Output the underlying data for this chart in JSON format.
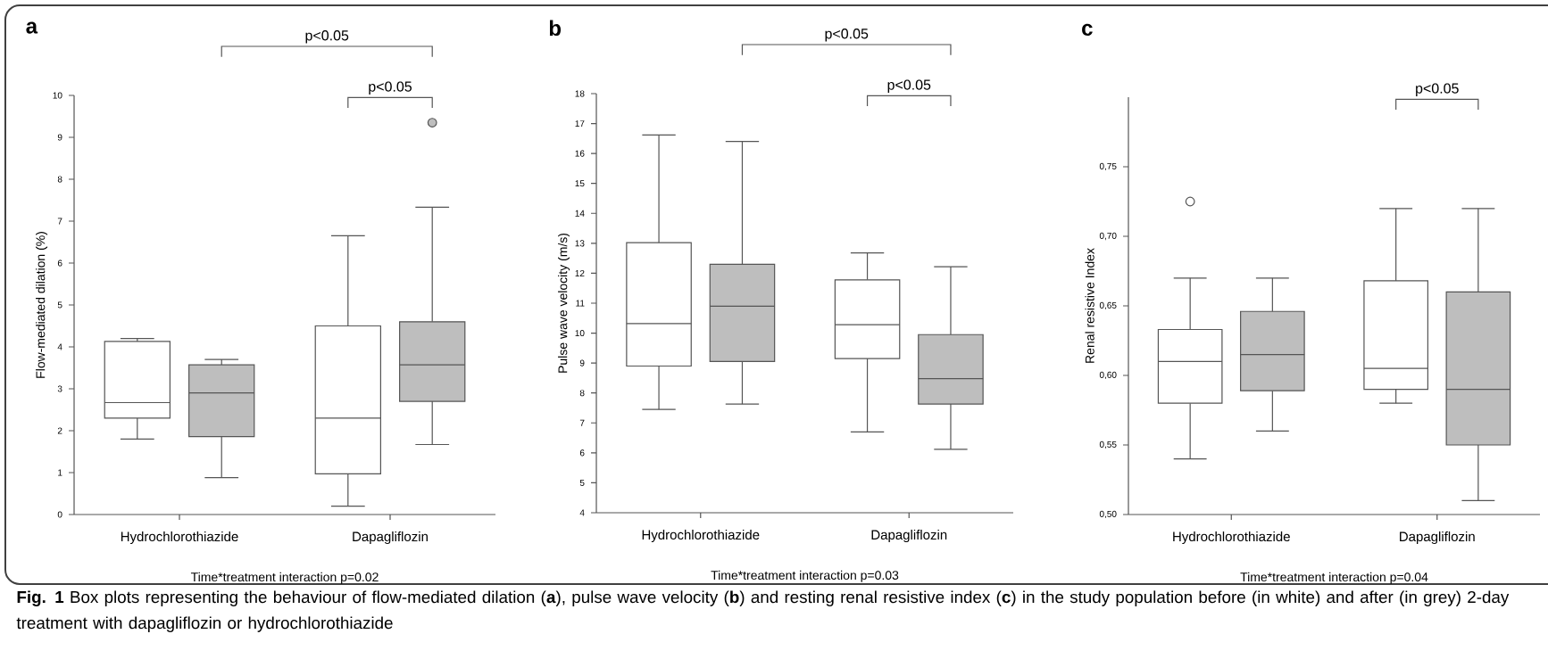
{
  "chart_data": [
    {
      "type": "box",
      "title": "a",
      "ylabel": "Flow-mediated dilation (%)",
      "xlabel": "Time*treatment interaction p=0.02",
      "categories": [
        "Hydrochlorothiazide",
        "Dapagliflozin"
      ],
      "ylim": [
        0,
        10
      ],
      "yticks": [
        0,
        1,
        2,
        3,
        4,
        5,
        6,
        7,
        8,
        9,
        10
      ],
      "series": [
        {
          "color": "#ffffff",
          "boxes": [
            {
              "low": 1.8,
              "q1": 2.3,
              "median": 2.67,
              "q3": 4.13,
              "high": 4.2
            },
            {
              "low": 0.2,
              "q1": 0.97,
              "median": 2.3,
              "q3": 4.5,
              "high": 6.65
            }
          ]
        },
        {
          "color": "#bebebe",
          "boxes": [
            {
              "low": 0.88,
              "q1": 1.86,
              "median": 2.9,
              "q3": 3.57,
              "high": 3.7
            },
            {
              "low": 1.67,
              "q1": 2.7,
              "median": 3.57,
              "q3": 4.6,
              "high": 7.33,
              "outliers": [
                9.35
              ]
            }
          ]
        }
      ],
      "annotations": [
        "p<0.05",
        "p<0.05",
        "**Fig. 1** Box plots representing the behaviour of flow-mediated dilation (**a**), pulse wave velocity (**b**) and resting renal resistive index (**c**) in the study population before (in white) and after (in grey) 2-day treatment with dapagliflozin or hydrochlorothiazide"
      ]
    },
    {
      "type": "box",
      "title": "b",
      "ylabel": "Pulse wave velocity (m/s)",
      "xlabel": "Time*treatment interaction p=0.03",
      "categories": [
        "Hydrochlorothiazide",
        "Dapagliflozin"
      ],
      "ylim": [
        4,
        18
      ],
      "yticks": [
        4,
        5,
        6,
        7,
        8,
        9,
        10,
        11,
        12,
        13,
        14,
        15,
        16,
        17,
        18
      ],
      "series": [
        {
          "color": "#ffffff",
          "boxes": [
            {
              "low": 7.45,
              "q1": 8.9,
              "median": 10.32,
              "q3": 13.02,
              "high": 16.62
            },
            {
              "low": 6.7,
              "q1": 9.15,
              "median": 10.28,
              "q3": 11.78,
              "high": 12.68
            }
          ]
        },
        {
          "color": "#bebebe",
          "boxes": [
            {
              "low": 7.63,
              "q1": 9.05,
              "median": 10.9,
              "q3": 12.3,
              "high": 16.4
            },
            {
              "low": 6.12,
              "q1": 7.63,
              "median": 8.48,
              "q3": 9.95,
              "high": 12.22
            }
          ]
        }
      ],
      "annotations": [
        "p<0.05",
        "p<0.05"
      ]
    },
    {
      "type": "box",
      "title": "c",
      "ylabel": "Renal resistive Index",
      "xlabel": "Time*treatment interaction p=0.04",
      "categories": [
        "Hydrochlorothiazide",
        "Dapagliflozin"
      ],
      "ylim": [
        0.5,
        0.8
      ],
      "yticks": [
        {
          "value": 0.5,
          "label": "0,50"
        },
        {
          "value": 0.55,
          "label": "0,55"
        },
        {
          "value": 0.6,
          "label": "0,60"
        },
        {
          "value": 0.65,
          "label": "0,65"
        },
        {
          "value": 0.7,
          "label": "0,70"
        },
        {
          "value": 0.75,
          "label": "0,75"
        }
      ],
      "series": [
        {
          "color": "#ffffff",
          "boxes": [
            {
              "low": 0.54,
              "q1": 0.58,
              "median": 0.61,
              "q3": 0.633,
              "high": 0.67,
              "outliers": [
                0.725
              ]
            },
            {
              "low": 0.58,
              "q1": 0.59,
              "median": 0.605,
              "q3": 0.668,
              "high": 0.72
            }
          ]
        },
        {
          "color": "#bebebe",
          "boxes": [
            {
              "low": 0.56,
              "q1": 0.589,
              "median": 0.615,
              "q3": 0.646,
              "high": 0.67
            },
            {
              "low": 0.51,
              "q1": 0.55,
              "median": 0.59,
              "q3": 0.66,
              "high": 0.72
            }
          ]
        }
      ],
      "annotations": [
        "p<0.05"
      ]
    }
  ]
}
